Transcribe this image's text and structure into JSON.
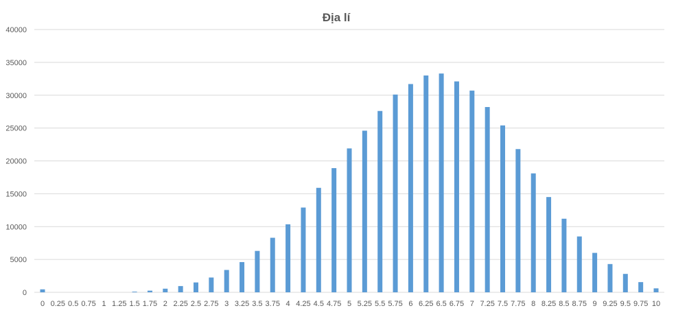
{
  "chart_data": {
    "type": "bar",
    "title": "Địa lí",
    "xlabel": "",
    "ylabel": "",
    "ylim": [
      0,
      40000
    ],
    "yticks": [
      0,
      5000,
      10000,
      15000,
      20000,
      25000,
      30000,
      35000,
      40000
    ],
    "grid": true,
    "color": "#5b9bd5",
    "categories": [
      "0",
      "0.25",
      "0.5",
      "0.75",
      "1",
      "1.25",
      "1.5",
      "1.75",
      "2",
      "2.25",
      "2.5",
      "2.75",
      "3",
      "3.25",
      "3.5",
      "3.75",
      "4",
      "4.25",
      "4.5",
      "4.75",
      "5",
      "5.25",
      "5.5",
      "5.75",
      "6",
      "6.25",
      "6.5",
      "6.75",
      "7",
      "7.25",
      "7.5",
      "7.75",
      "8",
      "8.25",
      "8.5",
      "8.75",
      "9",
      "9.25",
      "9.5",
      "9.75",
      "10"
    ],
    "values": [
      450,
      0,
      0,
      0,
      0,
      0,
      100,
      250,
      550,
      950,
      1500,
      2250,
      3400,
      4600,
      6300,
      8300,
      10350,
      12900,
      15900,
      18900,
      21900,
      24600,
      27600,
      30100,
      31700,
      33000,
      33300,
      32100,
      30700,
      28200,
      25400,
      21800,
      18100,
      14500,
      11200,
      8500,
      6000,
      4300,
      2800,
      1550,
      600
    ]
  }
}
